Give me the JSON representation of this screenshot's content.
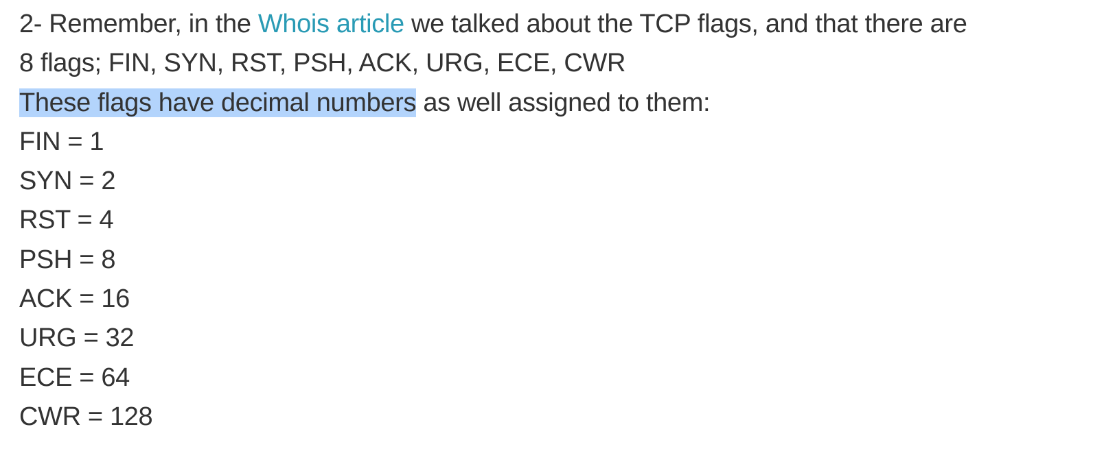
{
  "article": {
    "paragraph": {
      "intro_prefix": "2- Remember, in the ",
      "link_text": "Whois article",
      "intro_suffix": " we talked about the TCP flags, and that there are",
      "flags_line": "8 flags; FIN, SYN, RST, PSH, ACK, URG, ECE, CWR",
      "decimal_highlighted": "These flags have decimal numbers",
      "decimal_rest": " as well assigned to them:"
    },
    "flag_values": [
      "FIN = 1",
      "SYN = 2",
      "RST = 4",
      "PSH = 8",
      "ACK = 16",
      "URG = 32",
      "ECE = 64",
      "CWR = 128"
    ]
  },
  "colors": {
    "text": "#333333",
    "link": "#2a9bb5",
    "selection_highlight": "#b3d4fc",
    "background": "#ffffff"
  }
}
